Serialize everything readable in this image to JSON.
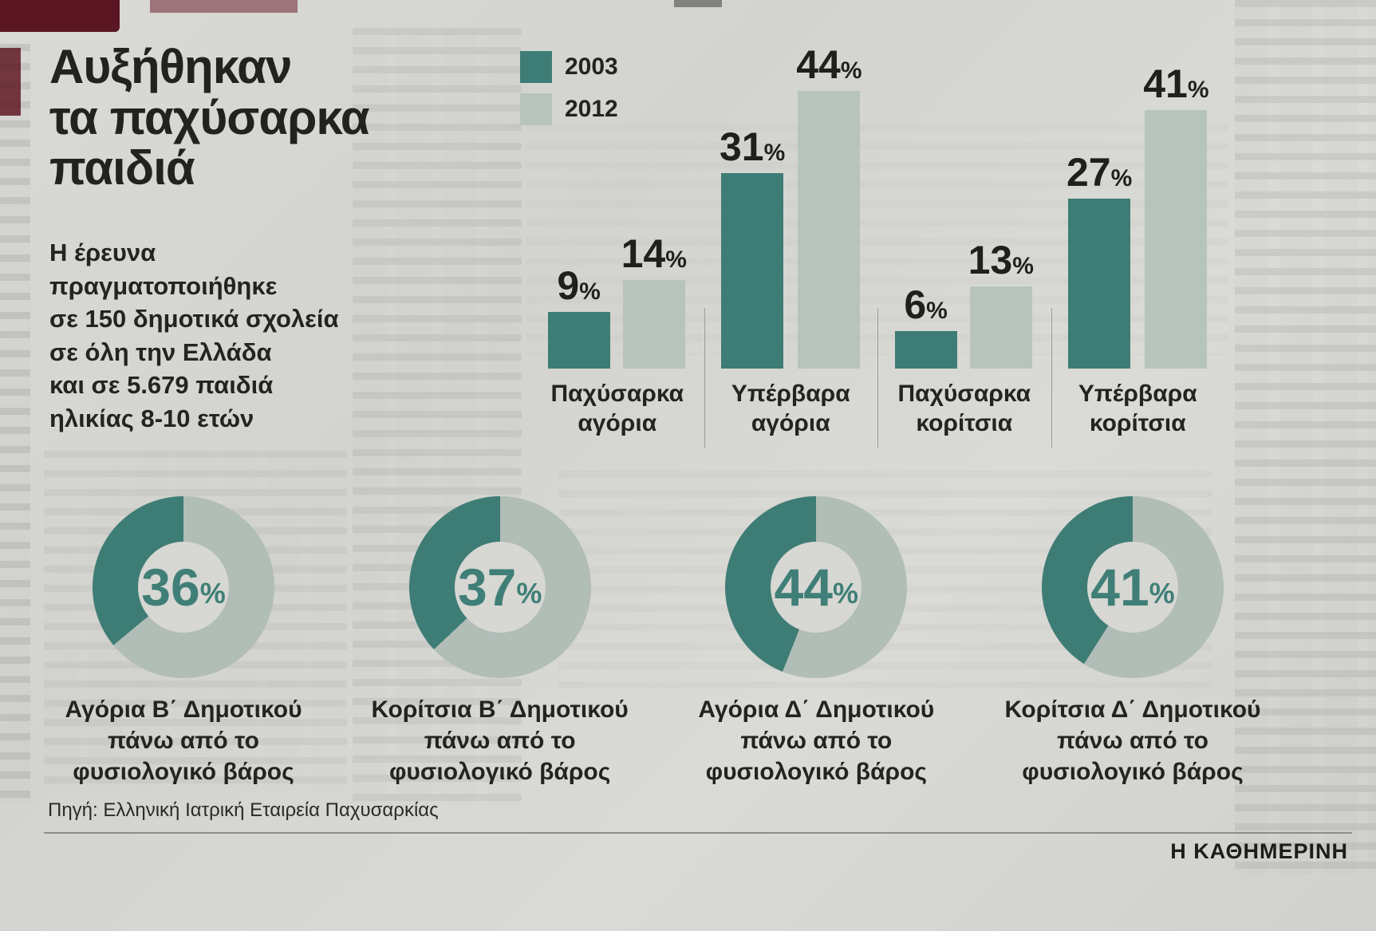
{
  "title": "Αυξήθηκαν\nτα παχύσαρκα\nπαιδιά",
  "subtitle": "Η έρευνα\nπραγματοποιήθηκε\nσε 150 δημοτικά σχολεία\nσε όλη την Ελλάδα\nκαι σε 5.679 παιδιά\nηλικίας 8-10 ετών",
  "source": "Πηγή: Ελληνική Ιατρική Εταιρεία Παχυσαρκίας",
  "newspaper": "Η ΚΑΘΗΜΕΡΙΝΗ",
  "colors": {
    "year2003": "#3e7d75",
    "year2012": "#b7c4bd",
    "donut_light": "#b1bdb7",
    "accent_text": "#3f7f77"
  },
  "chart_data": [
    {
      "type": "bar",
      "unit": "%",
      "legend": [
        {
          "label": "2003",
          "color": "#3e7d75"
        },
        {
          "label": "2012",
          "color": "#b7c4bd"
        }
      ],
      "legend_position": "top-left",
      "grid": false,
      "ylim": [
        0,
        50
      ],
      "categories": [
        "Παχύσαρκα αγόρια",
        "Υπέρβαρα αγόρια",
        "Παχύσαρκα κορίτσια",
        "Υπέρβαρα κορίτσια"
      ],
      "series": [
        {
          "name": "2003",
          "values": [
            9,
            31,
            6,
            27
          ]
        },
        {
          "name": "2012",
          "values": [
            14,
            44,
            13,
            41
          ]
        }
      ]
    },
    {
      "type": "pie",
      "variant": "donut",
      "unit": "%",
      "items": [
        {
          "value": 36,
          "label": "Αγόρια Β΄ Δημοτικού πάνω από το φυσιολογικό βάρος"
        },
        {
          "value": 37,
          "label": "Κορίτσια Β΄ Δημοτικού πάνω από το φυσιολογικό βάρος"
        },
        {
          "value": 44,
          "label": "Αγόρια Δ΄ Δημοτικού πάνω από το φυσιολογικό βάρος"
        },
        {
          "value": 41,
          "label": "Κορίτσια Δ΄ Δημοτικού πάνω από το φυσιολογικό βάρος"
        }
      ]
    }
  ]
}
